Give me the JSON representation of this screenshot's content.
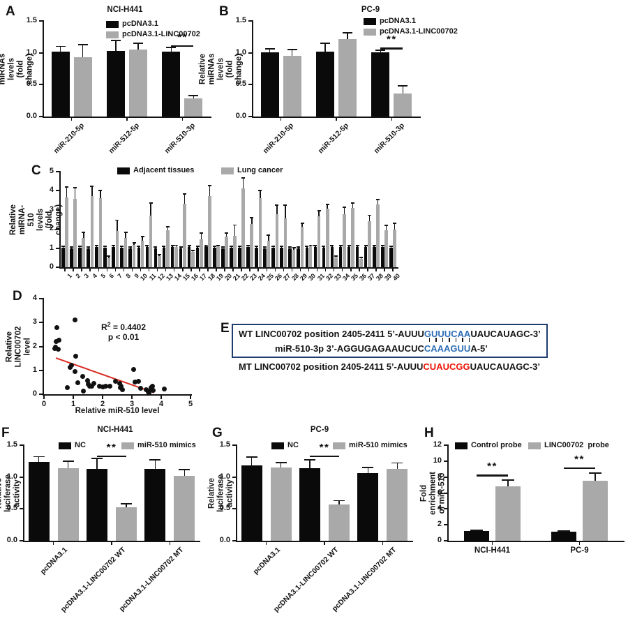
{
  "figure": {
    "panel_labels": [
      "A",
      "B",
      "C",
      "D",
      "E",
      "F",
      "G",
      "H"
    ],
    "background": "#ffffff",
    "colors": {
      "bar_black": "#0a0a0a",
      "bar_gray": "#a9a9a9",
      "axis": "#141414",
      "error": "#141414",
      "regression": "#d92b20",
      "seq_blue": "#2d6db5",
      "seq_red": "#ee1507",
      "seq_box": "#1f3c6e"
    }
  },
  "chart_data": [
    {
      "panel": "A",
      "type": "bar",
      "title": "NCI-H441",
      "ylabel": "Relative miRNAs\nlevels (fold change)",
      "ylim": [
        0,
        1.5
      ],
      "yticks": [
        "0.0",
        "0.5",
        "1.0",
        "1.5"
      ],
      "categories": [
        "miR-210-5p",
        "miR-512-5p",
        "miR-510-3p"
      ],
      "series": [
        {
          "name": "pcDNA3.1",
          "color": "black",
          "values": [
            1.02,
            1.03,
            1.02
          ],
          "errors": [
            0.08,
            0.16,
            0.06
          ]
        },
        {
          "name": "pcDNA3.1-LINC00702",
          "color": "gray",
          "values": [
            0.93,
            1.05,
            0.28
          ],
          "errors": [
            0.2,
            0.1,
            0.05
          ]
        }
      ],
      "significance": [
        {
          "category": 2,
          "label": "**",
          "line_y": 1.12
        }
      ]
    },
    {
      "panel": "B",
      "type": "bar",
      "title": "PC-9",
      "ylabel": "Relative miRNAs\nlevels (fold change)",
      "ylim": [
        0,
        1.5
      ],
      "yticks": [
        "0.0",
        "0.5",
        "1.0",
        "1.5"
      ],
      "categories": [
        "miR-210-5p",
        "miR-512-5p",
        "miR-510-3p"
      ],
      "series": [
        {
          "name": "pcDNA3.1",
          "color": "black",
          "values": [
            1.01,
            1.02,
            1.01
          ],
          "errors": [
            0.05,
            0.13,
            0.03
          ]
        },
        {
          "name": "pcDNA3.1-LINC00702",
          "color": "gray",
          "values": [
            0.95,
            1.21,
            0.36
          ],
          "errors": [
            0.1,
            0.1,
            0.12
          ]
        }
      ],
      "significance": [
        {
          "category": 2,
          "label": "**",
          "line_y": 1.08
        }
      ]
    },
    {
      "panel": "C",
      "type": "bar",
      "title": "",
      "ylabel": "Relative mIRNA-510\nlevels (fold change)",
      "ylim": [
        0,
        5
      ],
      "yticks": [
        "0",
        "1",
        "2",
        "3",
        "4",
        "5"
      ],
      "categories": [
        "1",
        "2",
        "3",
        "4",
        "5",
        "6",
        "7",
        "8",
        "9",
        "10",
        "11",
        "12",
        "13",
        "14",
        "15",
        "16",
        "17",
        "18",
        "19",
        "20",
        "21",
        "22",
        "23",
        "24",
        "25",
        "26",
        "27",
        "28",
        "29",
        "30",
        "31",
        "32",
        "33",
        "34",
        "35",
        "36",
        "37",
        "38",
        "39",
        "40"
      ],
      "series": [
        {
          "name": "Adjacent tissues",
          "color": "black",
          "values": [
            1.02,
            1.0,
            1.02,
            1.0,
            1.05,
            1.02,
            1.05,
            1.02,
            1.0,
            1.02,
            1.05,
            1.0,
            1.02,
            1.05,
            1.0,
            1.05,
            1.02,
            1.08,
            1.02,
            1.0,
            1.02,
            1.02,
            1.05,
            1.02,
            1.0,
            1.02,
            1.02,
            1.0,
            1.0,
            1.02,
            1.05,
            1.02,
            1.05,
            1.05,
            1.05,
            1.05,
            1.05,
            1.05,
            1.05,
            1.02
          ],
          "errors": [
            0.07,
            0.07,
            0.07,
            0.07,
            0.07,
            0.07,
            0.07,
            0.07,
            0.07,
            0.07,
            0.07,
            0.07,
            0.07,
            0.07,
            0.07,
            0.07,
            0.07,
            0.07,
            0.07,
            0.07,
            0.07,
            0.07,
            0.07,
            0.07,
            0.07,
            0.07,
            0.07,
            0.07,
            0.07,
            0.07,
            0.07,
            0.07,
            0.07,
            0.07,
            0.07,
            0.07,
            0.07,
            0.07,
            0.07,
            0.07
          ]
        },
        {
          "name": "Lung cancer",
          "color": "gray",
          "values": [
            3.65,
            3.57,
            1.54,
            3.74,
            3.6,
            0.48,
            1.88,
            1.55,
            1.15,
            1.38,
            2.7,
            0.57,
            1.94,
            1.05,
            3.33,
            0.79,
            1.45,
            3.72,
            1.05,
            1.6,
            1.66,
            4.12,
            2.28,
            3.62,
            1.38,
            2.76,
            2.56,
            0.93,
            2.12,
            1.08,
            2.65,
            3.08,
            0.5,
            2.78,
            3.1,
            0.45,
            2.42,
            3.3,
            1.95,
            1.97
          ],
          "errors": [
            0.55,
            0.58,
            0.28,
            0.5,
            0.42,
            0.1,
            0.58,
            0.27,
            0.12,
            0.22,
            0.65,
            0.1,
            0.18,
            0.1,
            0.5,
            0.1,
            0.35,
            0.55,
            0.08,
            0.18,
            0.55,
            0.55,
            0.3,
            0.4,
            0.3,
            0.48,
            0.68,
            0.1,
            0.18,
            0.07,
            0.3,
            0.2,
            0.07,
            0.35,
            0.25,
            0.07,
            0.3,
            0.25,
            0.25,
            0.33
          ]
        }
      ],
      "significance": []
    },
    {
      "panel": "D",
      "type": "scatter",
      "xlabel": "Relative miR-510 level",
      "ylabel": "Relative LINC00702 level",
      "xlim": [
        0,
        5
      ],
      "ylim": [
        0,
        4
      ],
      "xticks": [
        "0",
        "1",
        "2",
        "3",
        "4",
        "5"
      ],
      "yticks": [
        "0",
        "1",
        "2",
        "3",
        "4"
      ],
      "annotation": {
        "r2_base": "R",
        "r2_sup": "2",
        "r2_rest": " = 0.4402",
        "p_line": "p < 0.01"
      },
      "points": [
        [
          0.45,
          2.8
        ],
        [
          0.5,
          2.25
        ],
        [
          0.42,
          2.2
        ],
        [
          0.4,
          1.97
        ],
        [
          0.38,
          1.9
        ],
        [
          0.48,
          1.87
        ],
        [
          1.05,
          3.1
        ],
        [
          1.08,
          1.58
        ],
        [
          0.95,
          1.2
        ],
        [
          0.9,
          1.12
        ],
        [
          1.05,
          0.95
        ],
        [
          1.33,
          0.74
        ],
        [
          1.15,
          0.48
        ],
        [
          0.8,
          0.28
        ],
        [
          1.35,
          0.13
        ],
        [
          1.48,
          0.56
        ],
        [
          1.52,
          0.42
        ],
        [
          1.55,
          0.34
        ],
        [
          1.62,
          0.33
        ],
        [
          1.7,
          0.45
        ],
        [
          1.9,
          0.33
        ],
        [
          2.0,
          0.32
        ],
        [
          2.1,
          0.35
        ],
        [
          2.25,
          0.33
        ],
        [
          2.45,
          0.55
        ],
        [
          2.58,
          0.45
        ],
        [
          2.62,
          0.35
        ],
        [
          2.6,
          0.27
        ],
        [
          2.68,
          0.18
        ],
        [
          3.05,
          1.03
        ],
        [
          3.1,
          0.5
        ],
        [
          3.22,
          0.55
        ],
        [
          3.3,
          0.25
        ],
        [
          3.48,
          0.2
        ],
        [
          3.55,
          0.1
        ],
        [
          3.58,
          0.04
        ],
        [
          3.62,
          0.15
        ],
        [
          3.65,
          0.28
        ],
        [
          3.7,
          0.35
        ],
        [
          3.72,
          0.15
        ],
        [
          4.1,
          0.22
        ]
      ],
      "regression_line": {
        "x1": 0.4,
        "y1": 1.5,
        "x2": 3.74,
        "y2": 0.05
      }
    },
    {
      "panel": "E",
      "type": "sequence",
      "lines": [
        {
          "id": "wt",
          "in_box": true,
          "segments": [
            [
              "WT LINC00702 position 2405-2411  5’-AUUU",
              "black"
            ],
            [
              "GUUUCAA",
              "blue"
            ],
            [
              "UAUCAUAGC-3’",
              "black"
            ]
          ]
        },
        {
          "id": "mir",
          "in_box": true,
          "segments": [
            [
              "miR-510-3p 3’-AGGUGAGAAUCUC",
              "black"
            ],
            [
              "CAAAGUU",
              "blue"
            ],
            [
              "A-5’",
              "black"
            ]
          ]
        },
        {
          "id": "mt",
          "in_box": false,
          "segments": [
            [
              "MT LINC00702 position 2405-2411 5’-AUUU",
              "black"
            ],
            [
              "CUAUCGG",
              "red"
            ],
            [
              "UAUCAUAGC-3’",
              "black"
            ]
          ]
        }
      ],
      "pairing_marks": 7
    },
    {
      "panel": "F",
      "type": "bar",
      "title": "NCI-H441",
      "ylabel": "Relative luciferase activity",
      "ylim": [
        0,
        1.5
      ],
      "yticks": [
        "0.0",
        "0.5",
        "1.0",
        "1.5"
      ],
      "categories": [
        "pcDNA3.1",
        "pcDNA3.1-LINC00702 WT",
        "pcDNA3.1-LINC00702 MT"
      ],
      "series": [
        {
          "name": "NC",
          "color": "black",
          "values": [
            1.24,
            1.13,
            1.13
          ],
          "errors": [
            0.08,
            0.16,
            0.14
          ]
        },
        {
          "name": "miR-510 mimics",
          "color": "gray",
          "values": [
            1.14,
            0.53,
            1.02
          ],
          "errors": [
            0.11,
            0.05,
            0.1
          ]
        }
      ],
      "significance": [
        {
          "category": 1,
          "label": "**",
          "line_y": 1.34
        }
      ]
    },
    {
      "panel": "G",
      "type": "bar",
      "title": "PC-9",
      "ylabel": "Relative luciferase activity",
      "ylim": [
        0,
        1.5
      ],
      "yticks": [
        "0.0",
        "0.5",
        "1.0",
        "1.5"
      ],
      "categories": [
        "pcDNA3.1",
        "pcDNA3.1-LINC00702 WT",
        "pcDNA3.1-LINC00702 MT"
      ],
      "series": [
        {
          "name": "NC",
          "color": "black",
          "values": [
            1.18,
            1.14,
            1.06
          ],
          "errors": [
            0.13,
            0.13,
            0.09
          ]
        },
        {
          "name": "miR-510 mimics",
          "color": "gray",
          "values": [
            1.15,
            0.57,
            1.13
          ],
          "errors": [
            0.08,
            0.06,
            0.09
          ]
        }
      ],
      "significance": [
        {
          "category": 1,
          "label": "**",
          "line_y": 1.34
        }
      ]
    },
    {
      "panel": "H",
      "type": "bar",
      "title": "",
      "ylabel": "Fold enrichment of miR-510",
      "ylim": [
        0,
        12
      ],
      "yticks": [
        "0",
        "2",
        "4",
        "6",
        "8",
        "10",
        "12"
      ],
      "categories": [
        "NCI-H441",
        "PC-9"
      ],
      "series": [
        {
          "name": "Control probe",
          "color": "black",
          "values": [
            1.2,
            1.15
          ],
          "errors": [
            0.1,
            0.1
          ]
        },
        {
          "name": "LINC00702  probe",
          "color": "gray",
          "values": [
            6.8,
            7.5
          ],
          "errors": [
            0.8,
            1.0
          ]
        }
      ],
      "significance": [
        {
          "category": 0,
          "label": "**",
          "line_y": 8.3
        },
        {
          "category": 1,
          "label": "**",
          "line_y": 9.2
        }
      ]
    }
  ]
}
